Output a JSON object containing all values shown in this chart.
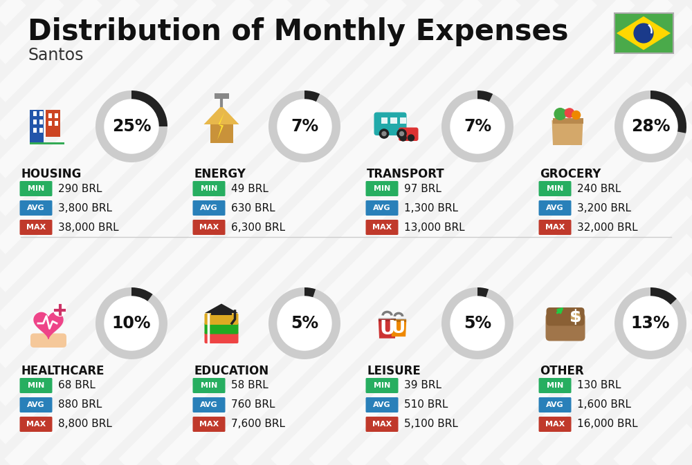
{
  "title": "Distribution of Monthly Expenses",
  "subtitle": "Santos",
  "background_color": "#f2f2f2",
  "categories": [
    {
      "name": "HOUSING",
      "pct": 25,
      "min_val": "290 BRL",
      "avg_val": "3,800 BRL",
      "max_val": "38,000 BRL",
      "row": 0,
      "col": 0
    },
    {
      "name": "ENERGY",
      "pct": 7,
      "min_val": "49 BRL",
      "avg_val": "630 BRL",
      "max_val": "6,300 BRL",
      "row": 0,
      "col": 1
    },
    {
      "name": "TRANSPORT",
      "pct": 7,
      "min_val": "97 BRL",
      "avg_val": "1,300 BRL",
      "max_val": "13,000 BRL",
      "row": 0,
      "col": 2
    },
    {
      "name": "GROCERY",
      "pct": 28,
      "min_val": "240 BRL",
      "avg_val": "3,200 BRL",
      "max_val": "32,000 BRL",
      "row": 0,
      "col": 3
    },
    {
      "name": "HEALTHCARE",
      "pct": 10,
      "min_val": "68 BRL",
      "avg_val": "880 BRL",
      "max_val": "8,800 BRL",
      "row": 1,
      "col": 0
    },
    {
      "name": "EDUCATION",
      "pct": 5,
      "min_val": "58 BRL",
      "avg_val": "760 BRL",
      "max_val": "7,600 BRL",
      "row": 1,
      "col": 1
    },
    {
      "name": "LEISURE",
      "pct": 5,
      "min_val": "39 BRL",
      "avg_val": "510 BRL",
      "max_val": "5,100 BRL",
      "row": 1,
      "col": 2
    },
    {
      "name": "OTHER",
      "pct": 13,
      "min_val": "130 BRL",
      "avg_val": "1,600 BRL",
      "max_val": "16,000 BRL",
      "row": 1,
      "col": 3
    }
  ],
  "min_color": "#27ae60",
  "avg_color": "#2980b9",
  "max_color": "#c0392b",
  "ring_dark": "#222222",
  "ring_light": "#cccccc",
  "title_fontsize": 30,
  "subtitle_fontsize": 17,
  "cat_fontsize": 12,
  "val_fontsize": 11,
  "pct_fontsize": 17,
  "badge_fontsize": 8
}
